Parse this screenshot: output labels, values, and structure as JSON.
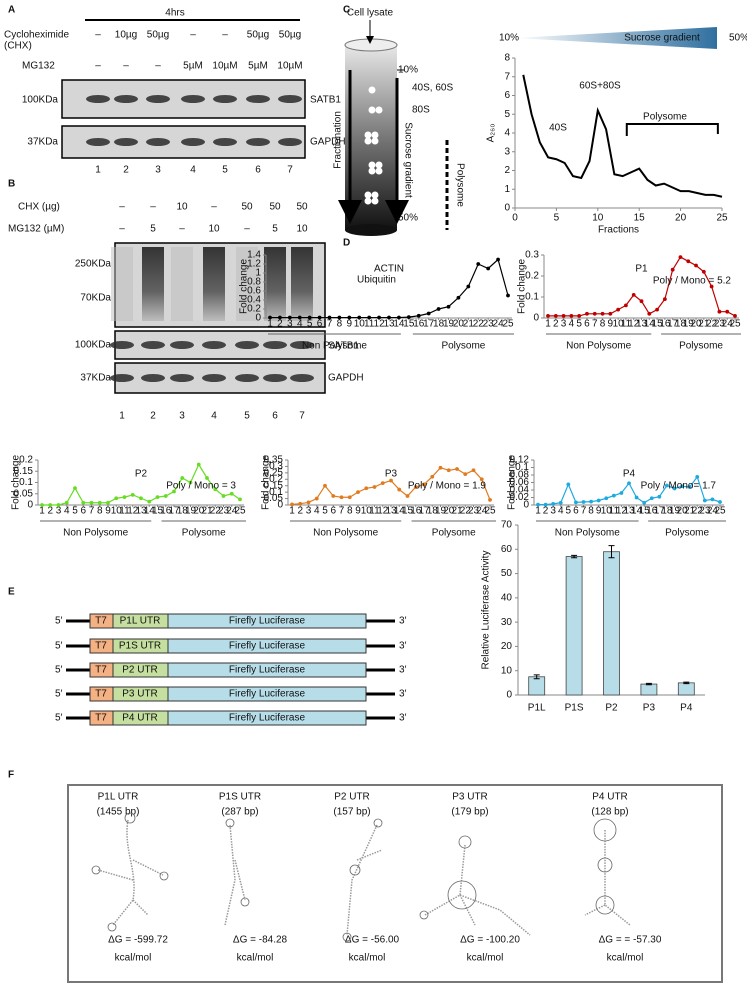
{
  "panel_labels": [
    "A",
    "B",
    "C",
    "D",
    "E",
    "F"
  ],
  "blot_a": {
    "time": "4hrs",
    "rows": [
      {
        "label": [
          "Cycloheximide",
          "(CHX)"
        ],
        "entries": [
          "–",
          "10µg",
          "50µg",
          "–",
          "–",
          "50µg",
          "50µg"
        ]
      },
      {
        "label": [
          "MG132"
        ],
        "entries": [
          "–",
          "–",
          "–",
          "5µM",
          "10µM",
          "5µM",
          "10µM"
        ]
      }
    ],
    "markers": [
      "100KDa",
      "37KDa"
    ],
    "proteins": [
      "SATB1",
      "GAPDH"
    ],
    "lanes": [
      1,
      2,
      3,
      4,
      5,
      6,
      7
    ]
  },
  "blot_b": {
    "rows": [
      {
        "label": [
          "CHX (µg)"
        ],
        "entries": [
          "–",
          "–",
          "10",
          "–",
          "50",
          "50",
          "50"
        ]
      },
      {
        "label": [
          "MG132 (µM)"
        ],
        "entries": [
          "–",
          "5",
          "–",
          "10",
          "–",
          "5",
          "10"
        ]
      }
    ],
    "markers": [
      "250KDa",
      "70KDa",
      "100KDa",
      "37KDa"
    ],
    "proteins": [
      "Ubiquitin",
      "SATB1",
      "GAPDH"
    ],
    "lanes": [
      1,
      2,
      3,
      4,
      5,
      6,
      7
    ]
  },
  "gradient_diagram": {
    "input": "Cell lysate",
    "top": "10%",
    "bottom": "50%",
    "subunits": [
      "40S, 60S",
      "80S"
    ],
    "gradient": "Sucrose gradient",
    "fractionation": "Fractionation",
    "polysome": "Polysome"
  },
  "chart_data": [
    {
      "type": "line",
      "markers": false,
      "color": "#000000",
      "x": [
        1,
        2,
        3,
        4,
        5,
        6,
        7,
        8,
        9,
        10,
        11,
        12,
        13,
        14,
        15,
        16,
        17,
        18,
        19,
        20,
        21,
        22,
        23,
        24,
        25
      ],
      "values": [
        7.1,
        5.0,
        3.5,
        2.7,
        2.6,
        2.4,
        1.7,
        1.6,
        2.5,
        5.2,
        4.2,
        1.8,
        1.7,
        1.9,
        2.1,
        1.5,
        1.2,
        1.3,
        1.1,
        0.9,
        0.9,
        0.8,
        0.7,
        0.7,
        0.6
      ],
      "xlim": [
        0,
        25
      ],
      "xticks": [
        0,
        5,
        10,
        15,
        20,
        25
      ],
      "ylim": [
        0,
        8
      ],
      "yticks": [
        0,
        1,
        2,
        3,
        4,
        5,
        6,
        7,
        8
      ],
      "x_label": "Fractions",
      "y_label": "A₂₆₀",
      "annotations": [
        "40S",
        "60S+80S",
        "Polysome"
      ],
      "gradient": {
        "start": "10%",
        "label": "Sucrose gradient",
        "end": "50%"
      }
    },
    {
      "type": "line",
      "markers": true,
      "title": "ACTIN",
      "color": "#000000",
      "x": [
        1,
        2,
        3,
        4,
        5,
        6,
        7,
        8,
        9,
        10,
        11,
        12,
        13,
        14,
        15,
        16,
        17,
        18,
        19,
        20,
        21,
        22,
        23,
        24,
        25
      ],
      "values": [
        0.01,
        0.01,
        0.01,
        0.01,
        0.01,
        0.01,
        0.01,
        0.01,
        0.01,
        0.01,
        0.01,
        0.01,
        0.01,
        0.01,
        0.02,
        0.05,
        0.1,
        0.2,
        0.25,
        0.45,
        0.7,
        1.2,
        1.1,
        1.3,
        0.5
      ],
      "xlim": [
        1,
        25
      ],
      "ylim": [
        0,
        1.4
      ],
      "yticks": [
        0,
        0.2,
        0.4,
        0.6,
        0.8,
        1,
        1.2,
        1.4
      ],
      "y_label": "Fold change",
      "regions": [
        "Non Polysome",
        "Polysome"
      ]
    },
    {
      "type": "line",
      "markers": true,
      "title": "P1",
      "annotation": "Poly / Mono = 5.2",
      "color": "#c00000",
      "x": [
        1,
        2,
        3,
        4,
        5,
        6,
        7,
        8,
        9,
        10,
        11,
        12,
        13,
        14,
        15,
        16,
        17,
        18,
        19,
        20,
        21,
        22,
        23,
        24,
        25
      ],
      "values": [
        0.01,
        0.01,
        0.01,
        0.01,
        0.01,
        0.02,
        0.02,
        0.02,
        0.02,
        0.04,
        0.06,
        0.11,
        0.08,
        0.02,
        0.04,
        0.09,
        0.23,
        0.29,
        0.27,
        0.25,
        0.22,
        0.15,
        0.03,
        0.03,
        0.01
      ],
      "xlim": [
        1,
        25
      ],
      "ylim": [
        0,
        0.3
      ],
      "yticks": [
        0,
        0.1,
        0.2,
        0.3
      ],
      "y_label": "Fold change",
      "regions": [
        "Non Polysome",
        "Polysome"
      ]
    },
    {
      "type": "line",
      "markers": true,
      "title": "P2",
      "annotation": "Poly / Mono = 3",
      "color": "#66dd22",
      "x": [
        1,
        2,
        3,
        4,
        5,
        6,
        7,
        8,
        9,
        10,
        11,
        12,
        13,
        14,
        15,
        16,
        17,
        18,
        19,
        20,
        21,
        22,
        23,
        24,
        25
      ],
      "values": [
        0,
        0,
        0,
        0.01,
        0.075,
        0.01,
        0.01,
        0.01,
        0.01,
        0.03,
        0.035,
        0.045,
        0.03,
        0.015,
        0.035,
        0.04,
        0.06,
        0.12,
        0.1,
        0.18,
        0.12,
        0.07,
        0.04,
        0.05,
        0.025
      ],
      "xlim": [
        1,
        25
      ],
      "ylim": [
        0,
        0.2
      ],
      "yticks": [
        0,
        0.05,
        0.1,
        0.15,
        0.2
      ],
      "y_label": "Fold change",
      "regions": [
        "Non Polysome",
        "Polysome"
      ]
    },
    {
      "type": "line",
      "markers": true,
      "title": "P3",
      "annotation": "Poly / Mono = 1.9",
      "color": "#e07b20",
      "x": [
        1,
        2,
        3,
        4,
        5,
        6,
        7,
        8,
        9,
        10,
        11,
        12,
        13,
        14,
        15,
        16,
        17,
        18,
        19,
        20,
        21,
        22,
        23,
        24,
        25
      ],
      "values": [
        0.005,
        0.01,
        0.02,
        0.05,
        0.15,
        0.07,
        0.06,
        0.06,
        0.1,
        0.13,
        0.14,
        0.17,
        0.19,
        0.12,
        0.07,
        0.14,
        0.16,
        0.22,
        0.29,
        0.27,
        0.28,
        0.24,
        0.27,
        0.2,
        0.04
      ],
      "xlim": [
        1,
        25
      ],
      "ylim": [
        0,
        0.35
      ],
      "yticks": [
        0,
        0.05,
        0.1,
        0.15,
        0.2,
        0.25,
        0.3,
        0.35
      ],
      "y_label": "Fold change",
      "regions": [
        "Non Polysome",
        "Polysome"
      ]
    },
    {
      "type": "line",
      "markers": true,
      "title": "P4",
      "annotation": "Poly / Mono= 1.7",
      "color": "#1fa9e1",
      "x": [
        1,
        2,
        3,
        4,
        5,
        6,
        7,
        8,
        9,
        10,
        11,
        12,
        13,
        14,
        15,
        16,
        17,
        18,
        19,
        20,
        21,
        22,
        23,
        24,
        25
      ],
      "values": [
        0.001,
        0.001,
        0.003,
        0.006,
        0.055,
        0.007,
        0.008,
        0.009,
        0.012,
        0.018,
        0.025,
        0.032,
        0.058,
        0.02,
        0.006,
        0.018,
        0.022,
        0.052,
        0.044,
        0.05,
        0.048,
        0.075,
        0.012,
        0.015,
        0.008
      ],
      "xlim": [
        1,
        25
      ],
      "ylim": [
        0,
        0.12
      ],
      "yticks": [
        0,
        0.02,
        0.04,
        0.06,
        0.08,
        0.1,
        0.12
      ],
      "y_label": "Fold change",
      "regions": [
        "Non Polysome",
        "Polysome"
      ]
    },
    {
      "type": "bar",
      "color": "#b7dde8",
      "categories": [
        "P1L",
        "P1S",
        "P2",
        "P3",
        "P4"
      ],
      "values": [
        7.5,
        57,
        59,
        4.5,
        5
      ],
      "errors": [
        0.8,
        0.5,
        2.5,
        0.3,
        0.3
      ],
      "ylim": [
        0,
        70
      ],
      "yticks": [
        0,
        10,
        20,
        30,
        40,
        50,
        60,
        70
      ],
      "y_label": "Relative Luciferase Activity"
    }
  ],
  "constructs": {
    "rows": [
      {
        "five": "5′",
        "promoter": "T7",
        "utr": "P1L UTR",
        "gene": "Firefly Luciferase",
        "three": "3′"
      },
      {
        "five": "5′",
        "promoter": "T7",
        "utr": "P1S UTR",
        "gene": "Firefly Luciferase",
        "three": "3′"
      },
      {
        "five": "5′",
        "promoter": "T7",
        "utr": "P2 UTR",
        "gene": "Firefly Luciferase",
        "three": "3′"
      },
      {
        "five": "5′",
        "promoter": "T7",
        "utr": "P3 UTR",
        "gene": "Firefly Luciferase",
        "three": "3′"
      },
      {
        "five": "5′",
        "promoter": "T7",
        "utr": "P4 UTR",
        "gene": "Firefly Luciferase",
        "three": "3′"
      }
    ]
  },
  "structures": [
    {
      "name": "P1L UTR",
      "length": "(1455 bp)",
      "dg": "ΔG = -599.72",
      "unit": "kcal/mol"
    },
    {
      "name": "P1S UTR",
      "length": "(287 bp)",
      "dg": "ΔG = -84.28",
      "unit": "kcal/mol"
    },
    {
      "name": "P2 UTR",
      "length": "(157 bp)",
      "dg": "ΔG = -56.00",
      "unit": "kcal/mol"
    },
    {
      "name": "P3 UTR",
      "length": "(179 bp)",
      "dg": "ΔG = -100.20",
      "unit": "kcal/mol"
    },
    {
      "name": "P4 UTR",
      "length": "(128 bp)",
      "dg": "ΔG = = -57.30",
      "unit": "kcal/mol"
    }
  ]
}
